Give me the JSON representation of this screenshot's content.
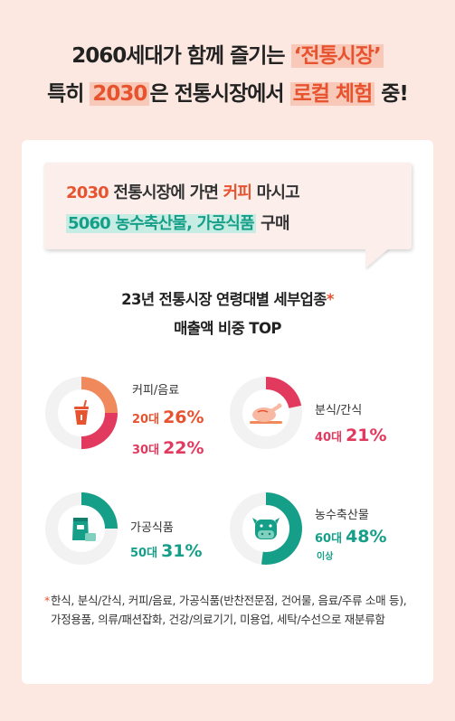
{
  "headline": {
    "line1_prefix": "2060세대가 함께 즐기는 ",
    "line1_highlight": "‘전통시장’",
    "line2_prefix": "특히 ",
    "line2_highlight_age": "2030",
    "line2_mid": "은 전통시장에서 ",
    "line2_highlight": "로컬 체험",
    "line2_suffix": " 중!"
  },
  "bubble": {
    "line1_age": "2030",
    "line1_mid": " 전통시장에 가면 ",
    "line1_highlight": "커피",
    "line1_suffix": " 마시고",
    "line2_highlight": "5060 농수축산물, 가공식품",
    "line2_suffix": " 구매"
  },
  "section_title": {
    "line1": "23년 전통시장 연령대별 세부업종",
    "star": "*",
    "line2": "매출액 비중 TOP"
  },
  "categories": [
    {
      "name": "커피/음료",
      "icon": "cup-icon",
      "entries": [
        {
          "age": "20대",
          "pct": "26%",
          "color": "#e8532f"
        },
        {
          "age": "30대",
          "pct": "22%",
          "color": "#e23a5e"
        }
      ]
    },
    {
      "name": "분식/간식",
      "icon": "chicken-icon",
      "entries": [
        {
          "age": "40대",
          "pct": "21%",
          "color": "#e23a5e"
        }
      ]
    },
    {
      "name": "가공식품",
      "icon": "package-icon",
      "entries": [
        {
          "age": "50대",
          "pct": "31%",
          "color": "#169f88"
        }
      ]
    },
    {
      "name": "농수축산물",
      "icon": "cow-icon",
      "entries": [
        {
          "age": "60대",
          "age_sub": "이상",
          "pct": "48%",
          "color": "#169f88"
        }
      ]
    }
  ],
  "footnote": {
    "star": "*",
    "text": "한식, 분식/간식, 커피/음료, 가공식품(반찬전문점, 건어물, 음료/주류 소매 등), 가정용품, 의류/패션잡화, 건강/의료기기, 미용업, 세탁/수선으로 재분류함"
  },
  "colors": {
    "background": "#fce8e1",
    "orange": "#e8532f",
    "pink": "#e23a5e",
    "teal": "#169f88",
    "track": "#f2f2f2"
  }
}
